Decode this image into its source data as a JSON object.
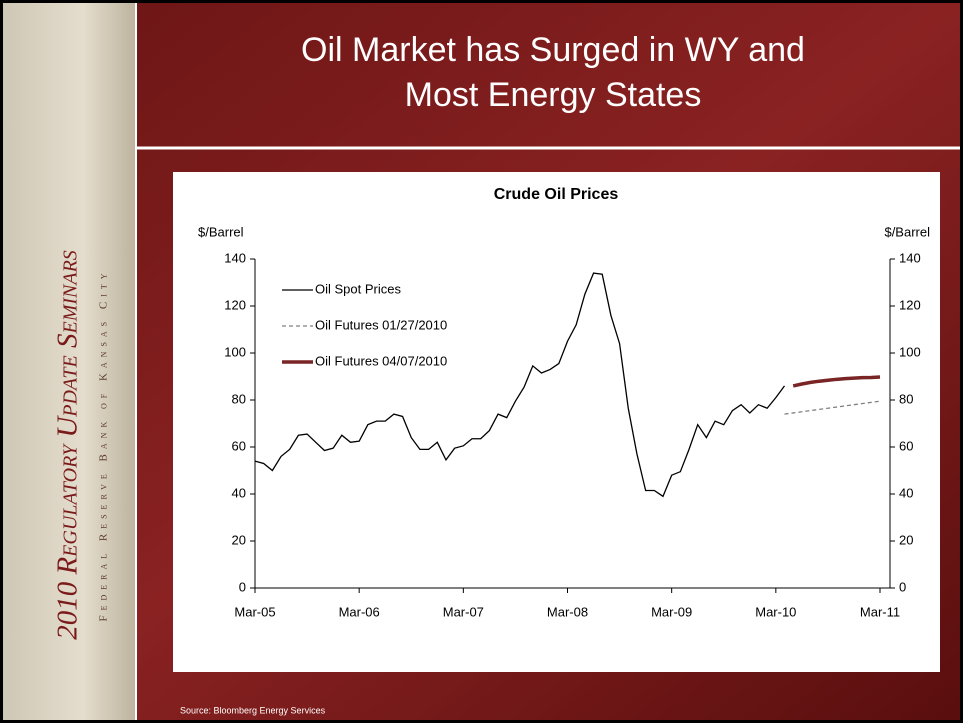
{
  "slide": {
    "title_lines": [
      "Oil Market has Surged in WY and",
      "Most Energy States"
    ],
    "sidebar_title": "2010 Regulatory Update Seminars",
    "sidebar_subtitle": "Federal Reserve Bank of Kansas City",
    "source": "Source: Bloomberg Energy Services"
  },
  "chart_data": {
    "type": "line",
    "title": "Crude Oil Prices",
    "y_label": "$/Barrel",
    "y2_label": "$/Barrel",
    "categories": [
      "Mar-05",
      null,
      null,
      null,
      null,
      null,
      null,
      null,
      null,
      null,
      null,
      null,
      "Mar-06",
      null,
      null,
      null,
      null,
      null,
      null,
      null,
      null,
      null,
      null,
      null,
      "Mar-07",
      null,
      null,
      null,
      null,
      null,
      null,
      null,
      null,
      null,
      null,
      null,
      "Mar-08",
      null,
      null,
      null,
      null,
      null,
      null,
      null,
      null,
      null,
      null,
      null,
      "Mar-09",
      null,
      null,
      null,
      null,
      null,
      null,
      null,
      null,
      null,
      null,
      null,
      "Mar-10",
      null,
      null,
      null,
      null,
      null,
      null,
      null,
      null,
      null,
      null,
      null,
      "Mar-11"
    ],
    "series": [
      {
        "name": "Oil Spot Prices",
        "color": "#000000",
        "dash": "solid",
        "width": 1.3,
        "values": [
          54,
          53,
          50,
          56,
          59,
          65,
          65.5,
          62,
          58.5,
          59.5,
          65,
          62,
          62.5,
          69.5,
          71,
          71,
          74,
          73,
          64,
          59,
          59,
          62,
          54.5,
          59.5,
          60.5,
          63.5,
          63.5,
          67,
          74,
          72.5,
          79.5,
          85.5,
          94.5,
          91.5,
          93,
          95.5,
          105,
          112,
          125,
          134,
          133.5,
          116,
          104,
          76.5,
          57,
          41.5,
          41.5,
          39,
          48,
          49.5,
          59,
          69.5,
          64,
          71,
          69.5,
          75.5,
          78,
          74.5,
          78,
          76.5,
          81,
          86,
          null,
          null,
          null,
          null,
          null,
          null,
          null,
          null,
          null,
          null,
          null
        ]
      },
      {
        "name": "Oil Futures 01/27/2010",
        "color": "#808080",
        "dash": "dashed",
        "width": 1.3,
        "values": [
          null,
          null,
          null,
          null,
          null,
          null,
          null,
          null,
          null,
          null,
          null,
          null,
          null,
          null,
          null,
          null,
          null,
          null,
          null,
          null,
          null,
          null,
          null,
          null,
          null,
          null,
          null,
          null,
          null,
          null,
          null,
          null,
          null,
          null,
          null,
          null,
          null,
          null,
          null,
          null,
          null,
          null,
          null,
          null,
          null,
          null,
          null,
          null,
          null,
          null,
          null,
          null,
          null,
          null,
          null,
          null,
          null,
          null,
          null,
          null,
          null,
          74,
          74.5,
          75,
          75.5,
          76,
          76.5,
          77,
          77.5,
          78,
          78.5,
          79,
          79.5
        ]
      },
      {
        "name": "Oil Futures 04/07/2010",
        "color": "#7a2525",
        "dash": "solid",
        "width": 3.5,
        "values": [
          null,
          null,
          null,
          null,
          null,
          null,
          null,
          null,
          null,
          null,
          null,
          null,
          null,
          null,
          null,
          null,
          null,
          null,
          null,
          null,
          null,
          null,
          null,
          null,
          null,
          null,
          null,
          null,
          null,
          null,
          null,
          null,
          null,
          null,
          null,
          null,
          null,
          null,
          null,
          null,
          null,
          null,
          null,
          null,
          null,
          null,
          null,
          null,
          null,
          null,
          null,
          null,
          null,
          null,
          null,
          null,
          null,
          null,
          null,
          null,
          null,
          null,
          86,
          86.8,
          87.5,
          88,
          88.4,
          88.8,
          89.1,
          89.3,
          89.5,
          89.6,
          89.8
        ]
      }
    ],
    "ylim": [
      0,
      140
    ],
    "yticks": [
      0,
      20,
      40,
      60,
      80,
      100,
      120,
      140
    ],
    "y2lim": [
      0,
      140
    ],
    "y2ticks": [
      0,
      20,
      40,
      60,
      80,
      100,
      120,
      140
    ],
    "grid": false,
    "legend": "top-left"
  }
}
